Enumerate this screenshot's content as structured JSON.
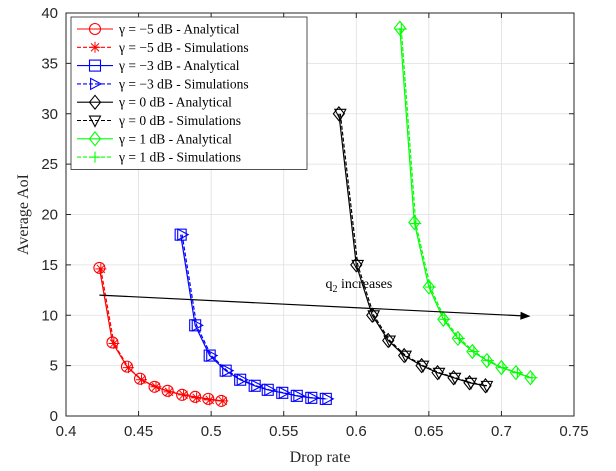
{
  "chart_data": {
    "type": "line",
    "xlabel": "Drop rate",
    "ylabel": "Average AoI",
    "xlim": [
      0.4,
      0.75
    ],
    "ylim": [
      0,
      40
    ],
    "x_ticks": [
      "0.4",
      "0.45",
      "0.5",
      "0.55",
      "0.6",
      "0.65",
      "0.7",
      "0.75"
    ],
    "y_ticks": [
      "0",
      "5",
      "10",
      "15",
      "20",
      "25",
      "30",
      "35",
      "40"
    ],
    "grid": true,
    "legend_position": "top-left",
    "series": [
      {
        "name": "γ = −5 dB - Analytical",
        "color": "#ff0000",
        "marker": "circle",
        "line": "solid",
        "x": [
          0.423,
          0.432,
          0.442,
          0.451,
          0.461,
          0.47,
          0.48,
          0.489,
          0.498,
          0.507
        ],
        "y": [
          14.7,
          7.3,
          4.9,
          3.7,
          2.9,
          2.5,
          2.1,
          1.9,
          1.7,
          1.5
        ]
      },
      {
        "name": "γ = −5 dB - Simulations",
        "color": "#ff0000",
        "marker": "asterisk",
        "line": "dashed",
        "x": [
          0.424,
          0.433,
          0.443,
          0.452,
          0.462,
          0.471,
          0.481,
          0.49,
          0.499,
          0.508
        ],
        "y": [
          14.6,
          7.2,
          4.8,
          3.6,
          2.9,
          2.4,
          2.1,
          1.8,
          1.6,
          1.5
        ]
      },
      {
        "name": "γ = −3 dB - Analytical",
        "color": "#0000ff",
        "marker": "square",
        "line": "solid",
        "x": [
          0.479,
          0.489,
          0.499,
          0.51,
          0.52,
          0.53,
          0.539,
          0.549,
          0.559,
          0.569,
          0.579
        ],
        "y": [
          18.0,
          9.0,
          6.0,
          4.5,
          3.6,
          3.0,
          2.6,
          2.3,
          2.0,
          1.8,
          1.7
        ]
      },
      {
        "name": "γ = −3 dB - Simulations",
        "color": "#0000ff",
        "marker": "triangle-right",
        "line": "dashed",
        "x": [
          0.48,
          0.49,
          0.5,
          0.511,
          0.521,
          0.531,
          0.54,
          0.55,
          0.56,
          0.57,
          0.58
        ],
        "y": [
          18.0,
          9.0,
          6.0,
          4.5,
          3.6,
          3.0,
          2.6,
          2.3,
          2.0,
          1.8,
          1.7
        ]
      },
      {
        "name": "γ = 0 dB - Analytical",
        "color": "#000000",
        "marker": "diamond",
        "line": "solid",
        "x": [
          0.588,
          0.6,
          0.611,
          0.622,
          0.633,
          0.645,
          0.656,
          0.667,
          0.678,
          0.689
        ],
        "y": [
          30.0,
          15.0,
          10.0,
          7.5,
          6.0,
          5.0,
          4.3,
          3.8,
          3.3,
          3.0
        ]
      },
      {
        "name": "γ = 0 dB - Simulations",
        "color": "#000000",
        "marker": "triangle-down",
        "line": "dashed",
        "x": [
          0.589,
          0.601,
          0.612,
          0.623,
          0.634,
          0.646,
          0.657,
          0.668,
          0.679,
          0.69
        ],
        "y": [
          30.0,
          15.0,
          10.0,
          7.5,
          6.0,
          5.0,
          4.3,
          3.8,
          3.3,
          3.0
        ]
      },
      {
        "name": "γ = 1 dB - Analytical",
        "color": "#00ff00",
        "marker": "diamond",
        "line": "solid",
        "x": [
          0.63,
          0.64,
          0.65,
          0.66,
          0.67,
          0.68,
          0.69,
          0.7,
          0.71,
          0.72
        ],
        "y": [
          38.5,
          19.2,
          12.8,
          9.6,
          7.7,
          6.4,
          5.5,
          4.8,
          4.3,
          3.8
        ]
      },
      {
        "name": "γ = 1 dB - Simulations",
        "color": "#00ff00",
        "marker": "plus",
        "line": "dashed",
        "x": [
          0.631,
          0.641,
          0.651,
          0.661,
          0.671,
          0.681,
          0.691,
          0.701,
          0.711,
          0.721
        ],
        "y": [
          38.4,
          19.1,
          12.8,
          9.6,
          7.7,
          6.4,
          5.5,
          4.8,
          4.3,
          3.8
        ]
      }
    ],
    "annotation": {
      "text_main": "q",
      "text_sub": "2",
      "text_rest": " increases",
      "arrow_from": [
        0.423,
        12.0
      ],
      "arrow_to": [
        0.72,
        9.9
      ],
      "label_at": [
        0.605,
        12.7
      ]
    }
  }
}
